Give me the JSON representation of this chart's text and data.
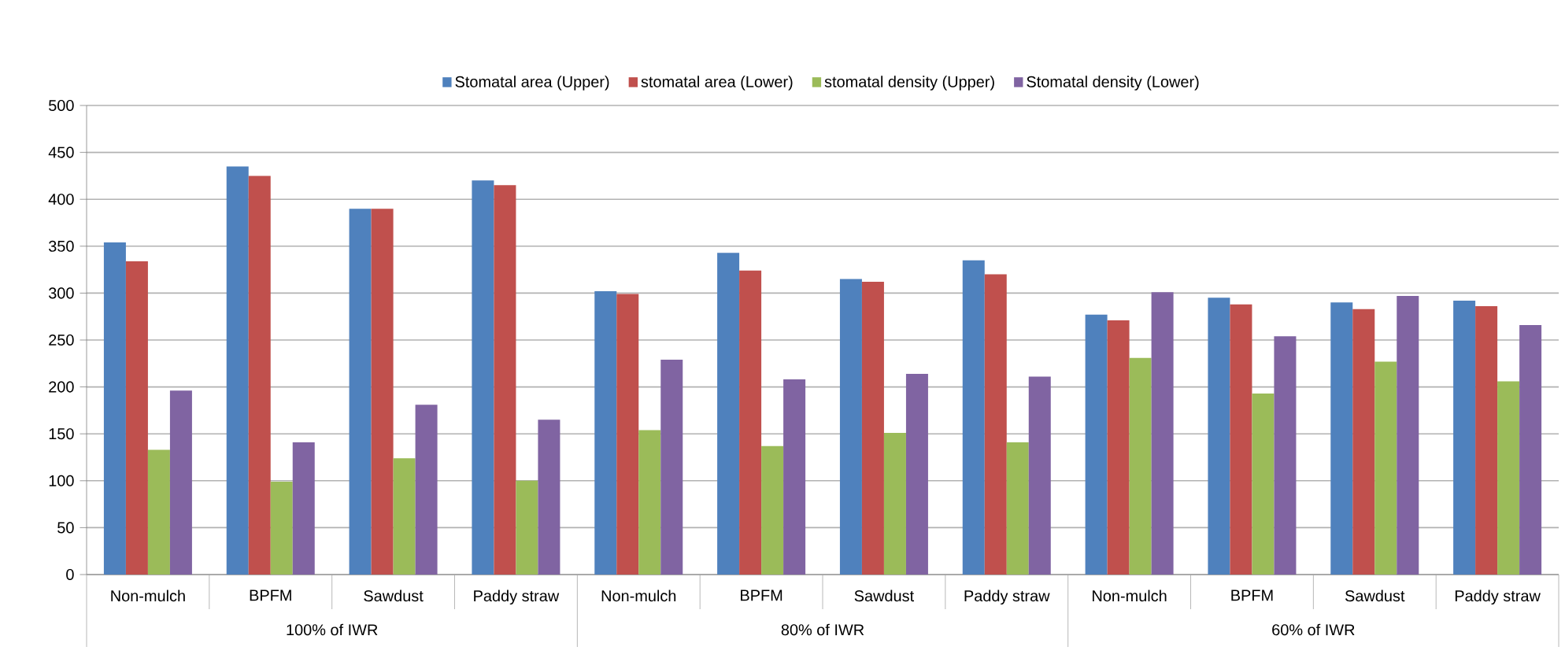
{
  "chart_data": {
    "type": "bar",
    "categories": [
      "Non-mulch",
      "BPFM",
      "Sawdust",
      "Paddy straw",
      "Non-mulch",
      "BPFM",
      "Sawdust",
      "Paddy straw",
      "Non-mulch",
      "BPFM",
      "Sawdust",
      "Paddy straw"
    ],
    "series": [
      {
        "name": "Stomatal area (Upper)",
        "color": "#4f81bd",
        "values": [
          354,
          435,
          390,
          420,
          302,
          343,
          315,
          335,
          277,
          295,
          290,
          292
        ]
      },
      {
        "name": "stomatal area (Lower)",
        "color": "#c0504d",
        "values": [
          334,
          425,
          390,
          415,
          299,
          324,
          312,
          320,
          271,
          288,
          283,
          286
        ]
      },
      {
        "name": "stomatal density (Upper)",
        "color": "#9bbb59",
        "values": [
          133,
          99,
          124,
          100,
          154,
          137,
          151,
          141,
          231,
          193,
          227,
          206
        ]
      },
      {
        "name": "Stomatal density (Lower)",
        "color": "#8064a2",
        "values": [
          196,
          141,
          181,
          165,
          229,
          208,
          214,
          211,
          301,
          254,
          297,
          266
        ]
      }
    ],
    "annotations": [
      "100% of IWR",
      "80% of IWR",
      "60% of IWR"
    ],
    "ylim": [
      0,
      500
    ],
    "yticks": [
      0,
      50,
      100,
      150,
      200,
      250,
      300,
      350,
      400,
      450,
      500
    ],
    "grid": "y",
    "legend": "top"
  }
}
